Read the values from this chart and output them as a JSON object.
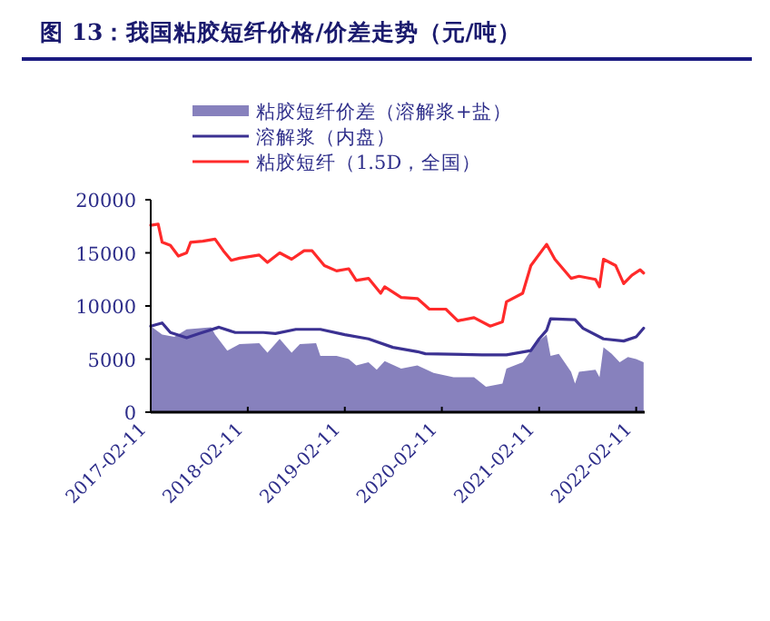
{
  "chart_data": {
    "type": "line",
    "title": "图 13：我国粘胶短纤价格/价差走势（元/吨）",
    "legend": "top",
    "xlim": [
      "2017-02-11",
      "2022-03-15"
    ],
    "ylim": [
      0,
      20000
    ],
    "yticks": [
      0,
      5000,
      10000,
      15000,
      20000
    ],
    "xticks": [
      {
        "value": "2017-02-11",
        "label": "2017-02-11"
      },
      {
        "value": "2018-02-11",
        "label": "2018-02-11"
      },
      {
        "value": "2019-02-11",
        "label": "2019-02-11"
      },
      {
        "value": "2020-02-11",
        "label": "2020-02-11"
      },
      {
        "value": "2021-02-11",
        "label": "2021-02-11"
      },
      {
        "value": "2022-02-11",
        "label": "2022-02-11"
      }
    ],
    "series": [
      {
        "name": "粘胶短纤价差（溶解浆+盐）",
        "type": "area",
        "color": "#8781bd",
        "x": [
          "2017-02-11",
          "2017-03-26",
          "2017-05-11",
          "2017-06-26",
          "2017-09-26",
          "2017-10-11",
          "2017-11-26",
          "2018-01-11",
          "2018-03-26",
          "2018-04-26",
          "2018-06-11",
          "2018-07-26",
          "2018-08-26",
          "2018-10-26",
          "2018-11-11",
          "2019-01-11",
          "2019-02-26",
          "2019-03-26",
          "2019-05-11",
          "2019-06-11",
          "2019-07-11",
          "2019-09-11",
          "2019-11-11",
          "2020-01-11",
          "2020-03-26",
          "2020-06-11",
          "2020-07-26",
          "2020-09-26",
          "2020-10-11",
          "2020-12-11",
          "2021-01-11",
          "2021-02-11",
          "2021-03-11",
          "2021-03-26",
          "2021-04-26",
          "2021-06-11",
          "2021-06-26",
          "2021-07-11",
          "2021-09-11",
          "2021-09-26",
          "2021-10-11",
          "2021-11-11",
          "2021-12-11",
          "2022-01-11",
          "2022-02-11",
          "2022-03-11"
        ],
        "values": [
          8100,
          7300,
          7100,
          7800,
          8000,
          7300,
          5800,
          6400,
          6500,
          5600,
          6900,
          5600,
          6400,
          6500,
          5300,
          5300,
          5000,
          4400,
          4700,
          4000,
          4800,
          4100,
          4400,
          3700,
          3300,
          3300,
          2400,
          2700,
          4100,
          4700,
          5800,
          6700,
          7300,
          5300,
          5500,
          3800,
          2700,
          3800,
          4000,
          3300,
          6100,
          5500,
          4700,
          5200,
          5000,
          4700
        ]
      },
      {
        "name": "溶解浆（内盘）",
        "type": "line",
        "color": "#3b3192",
        "x": [
          "2017-02-11",
          "2017-03-26",
          "2017-04-26",
          "2017-06-26",
          "2017-08-11",
          "2017-10-26",
          "2017-12-26",
          "2018-04-11",
          "2018-05-26",
          "2018-08-11",
          "2018-11-11",
          "2019-02-11",
          "2019-05-11",
          "2019-08-11",
          "2019-11-11",
          "2019-12-11",
          "2020-07-11",
          "2020-10-11",
          "2021-01-11",
          "2021-02-11",
          "2021-03-11",
          "2021-03-26",
          "2021-06-26",
          "2021-07-26",
          "2021-10-11",
          "2021-12-26",
          "2022-02-11",
          "2022-03-11"
        ],
        "values": [
          8100,
          8400,
          7500,
          7000,
          7400,
          8000,
          7500,
          7500,
          7400,
          7800,
          7800,
          7300,
          6900,
          6100,
          5700,
          5500,
          5400,
          5400,
          5800,
          6900,
          7700,
          8800,
          8700,
          7900,
          6900,
          6700,
          7100,
          7900
        ]
      },
      {
        "name": "粘胶短纤（1.5D，全国）",
        "type": "line",
        "color": "#ff2a2a",
        "x": [
          "2017-02-11",
          "2017-03-11",
          "2017-03-26",
          "2017-04-26",
          "2017-05-26",
          "2017-06-26",
          "2017-07-11",
          "2017-08-26",
          "2017-10-11",
          "2017-11-11",
          "2017-12-11",
          "2018-01-11",
          "2018-03-26",
          "2018-04-26",
          "2018-06-11",
          "2018-07-26",
          "2018-09-11",
          "2018-10-11",
          "2018-11-26",
          "2019-01-11",
          "2019-02-26",
          "2019-03-26",
          "2019-05-11",
          "2019-06-26",
          "2019-07-11",
          "2019-09-11",
          "2019-11-11",
          "2019-12-26",
          "2020-02-26",
          "2020-04-11",
          "2020-06-11",
          "2020-08-11",
          "2020-09-26",
          "2020-10-11",
          "2020-12-11",
          "2021-01-11",
          "2021-03-11",
          "2021-04-11",
          "2021-06-11",
          "2021-07-11",
          "2021-09-11",
          "2021-09-26",
          "2021-10-11",
          "2021-11-26",
          "2021-12-26",
          "2022-01-26",
          "2022-02-26",
          "2022-03-11"
        ],
        "values": [
          17600,
          17700,
          16000,
          15700,
          14700,
          15000,
          16000,
          16100,
          16300,
          15200,
          14300,
          14500,
          14800,
          14100,
          15000,
          14400,
          15200,
          15200,
          13800,
          13300,
          13500,
          12400,
          12600,
          11200,
          11800,
          10800,
          10700,
          9700,
          9700,
          8600,
          8900,
          8100,
          8500,
          10400,
          11200,
          13800,
          15800,
          14400,
          12600,
          12800,
          12500,
          11800,
          14400,
          13800,
          12100,
          12900,
          13400,
          13100
        ]
      }
    ]
  }
}
